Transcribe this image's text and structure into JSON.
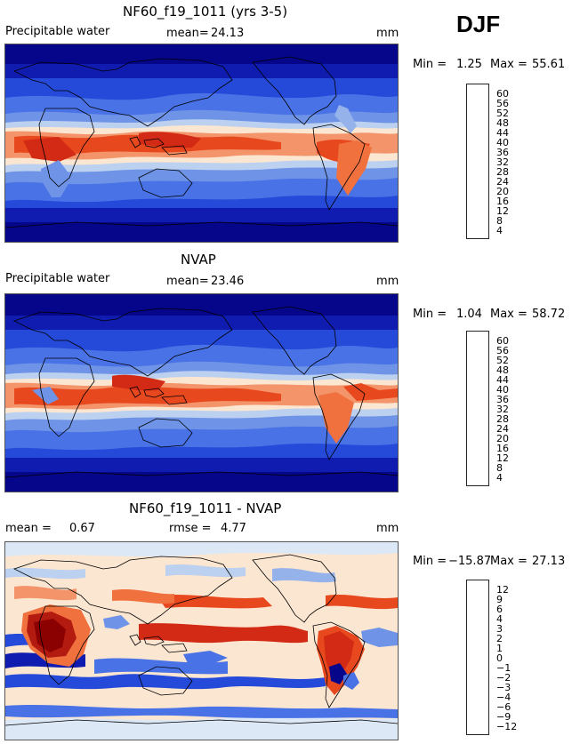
{
  "season": "DJF",
  "panels": [
    {
      "title": "NF60_f19_1011 (yrs 3-5)",
      "left_label": "Precipitable water",
      "mean_label": "mean=",
      "mean_value": "24.13",
      "units": "mm",
      "min_label": "Min =",
      "min_value": "1.25",
      "max_label": "Max =",
      "max_value": "55.61",
      "colorbar_levels": [
        "60",
        "56",
        "52",
        "48",
        "44",
        "40",
        "36",
        "32",
        "28",
        "24",
        "20",
        "16",
        "12",
        "8",
        "4"
      ]
    },
    {
      "title": "NVAP",
      "left_label": "Precipitable water",
      "mean_label": "mean=",
      "mean_value": "23.46",
      "units": "mm",
      "min_label": "Min =",
      "min_value": "1.04",
      "max_label": "Max =",
      "max_value": "58.72",
      "colorbar_levels": [
        "60",
        "56",
        "52",
        "48",
        "44",
        "40",
        "36",
        "32",
        "28",
        "24",
        "20",
        "16",
        "12",
        "8",
        "4"
      ]
    },
    {
      "title": "NF60_f19_1011 - NVAP",
      "left_label": "mean =",
      "mean_label": "",
      "mean_value": "0.67",
      "rmse_label": "rmse =",
      "rmse_value": "4.77",
      "units": "mm",
      "min_label": "Min =",
      "min_value": "−15.87",
      "max_label": "Max =",
      "max_value": "27.13",
      "colorbar_levels": [
        "12",
        "9",
        "6",
        "4",
        "3",
        "2",
        "1",
        "0",
        "−1",
        "−2",
        "−3",
        "−4",
        "−6",
        "−9",
        "−12"
      ]
    }
  ],
  "colors": {
    "scale": [
      "#8b0000",
      "#b41b10",
      "#d22a14",
      "#e8481e",
      "#f0703e",
      "#f4946a",
      "#f7bb9a",
      "#fbe6d2",
      "#dde8f6",
      "#bcd0ef",
      "#95b2ea",
      "#6f93e6",
      "#4972e6",
      "#2549d8",
      "#101cb0",
      "#06068a"
    ]
  }
}
